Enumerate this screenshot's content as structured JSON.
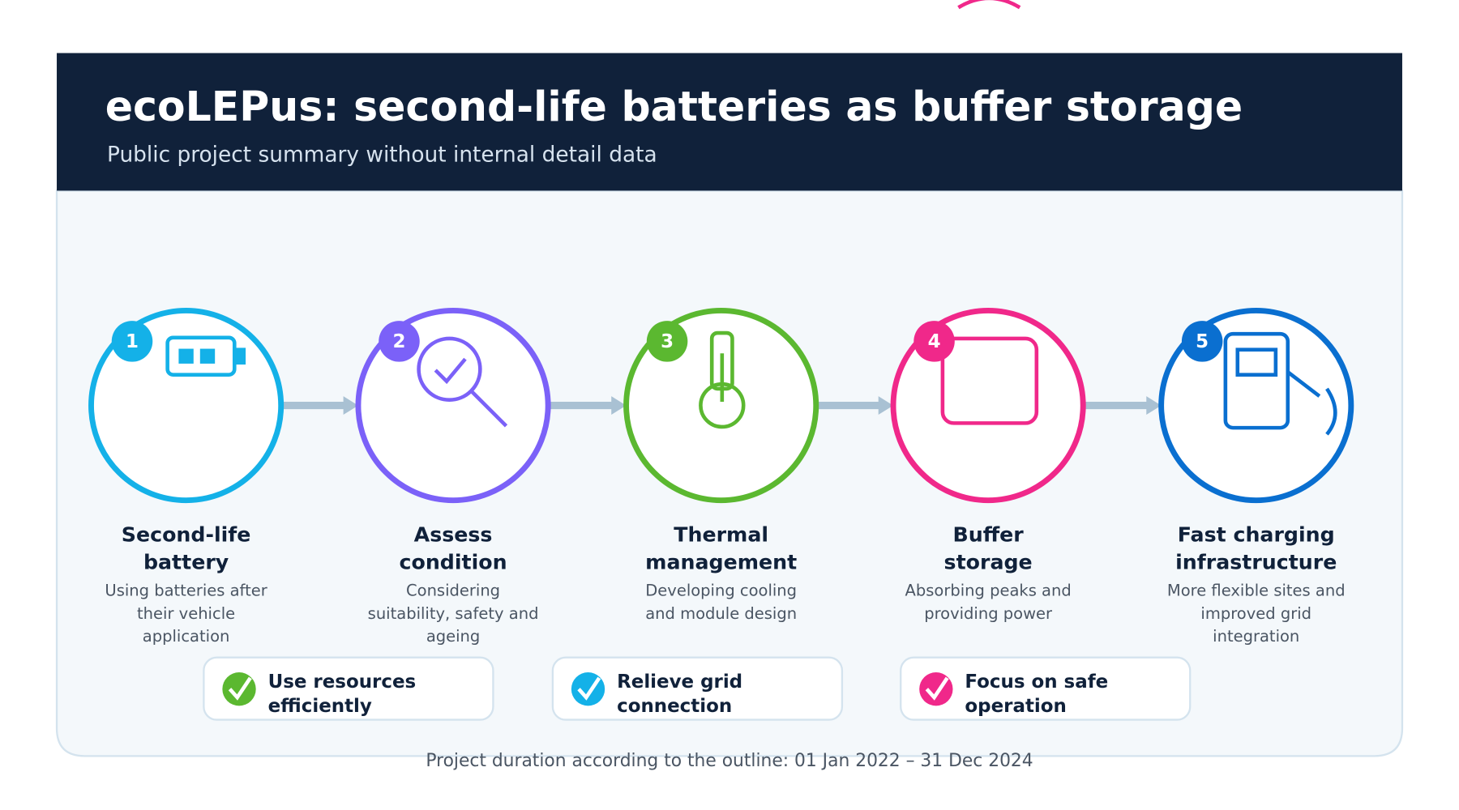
{
  "header": {
    "title": "ecoLEPus: second-life batteries as buffer storage",
    "subtitle": "Public project summary without internal detail data"
  },
  "steps": [
    {
      "number": "1",
      "title": [
        "Second-life",
        "battery"
      ],
      "description": [
        "Using batteries after",
        "their vehicle",
        "application"
      ]
    },
    {
      "number": "2",
      "title": [
        "Assess",
        "condition"
      ],
      "description": [
        "Considering",
        "suitability, safety and",
        "ageing"
      ]
    },
    {
      "number": "3",
      "title": [
        "Thermal",
        "management"
      ],
      "description": [
        "Developing cooling",
        "and module design"
      ]
    },
    {
      "number": "4",
      "title": [
        "Buffer",
        "storage"
      ],
      "description": [
        "Absorbing peaks and",
        "providing power"
      ]
    },
    {
      "number": "5",
      "title": [
        "Fast charging",
        "infrastructure"
      ],
      "description": [
        "More flexible sites and",
        "improved grid",
        "integration"
      ]
    }
  ],
  "benefits": [
    {
      "label": [
        "Use resources",
        "efficiently"
      ]
    },
    {
      "label": [
        "Relieve grid",
        "connection"
      ]
    },
    {
      "label": [
        "Focus on safe",
        "operation"
      ]
    }
  ],
  "footer": "Project duration according to the outline: 01 Jan 2022 – 31 Dec 2024"
}
